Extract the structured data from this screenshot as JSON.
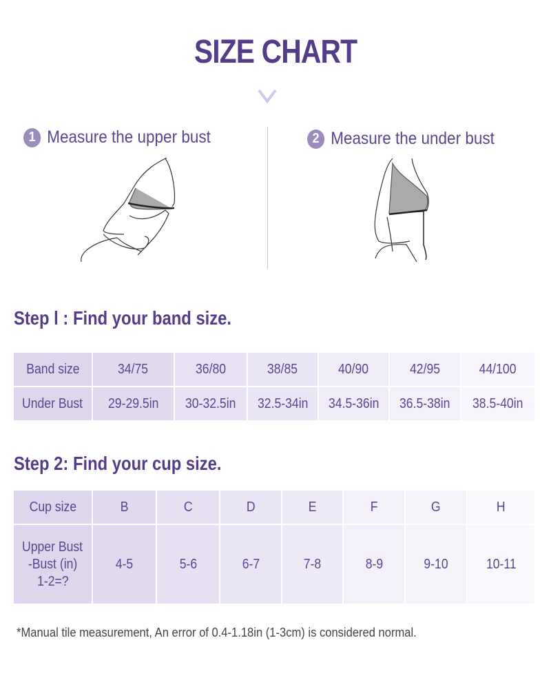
{
  "title": "SIZE CHART",
  "measure": [
    {
      "number": "1",
      "label": "Measure the upper bust"
    },
    {
      "number": "2",
      "label": "Measure the under bust"
    }
  ],
  "step1": {
    "heading": "Step l : Find your band size.",
    "rows": [
      {
        "label": "Band size",
        "values": [
          "34/75",
          "36/80",
          "38/85",
          "40/90",
          "42/95",
          "44/100"
        ]
      },
      {
        "label": "Under Bust",
        "values": [
          "29-29.5in",
          "30-32.5in",
          "32.5-34in",
          "34.5-36in",
          "36.5-38in",
          "38.5-40in"
        ]
      }
    ]
  },
  "step2": {
    "heading": "Step 2: Find your cup size.",
    "rows": [
      {
        "label": "Cup size",
        "values": [
          "B",
          "C",
          "D",
          "E",
          "F",
          "G",
          "H"
        ]
      },
      {
        "label_lines": [
          "Upper Bust",
          "-Bust (in)",
          "1-2=?"
        ],
        "values": [
          "4-5",
          "5-6",
          "6-7",
          "7-8",
          "8-9",
          "9-10",
          "10-11"
        ]
      }
    ]
  },
  "note": "*Manual tile measurement, An error of 0.4-1.18in (1-3cm) is considered normal.",
  "colors": {
    "title": "#553c8b",
    "text": "#5a4590",
    "header_cell": "#ddd6ec",
    "badge": "#9b8dbb"
  }
}
